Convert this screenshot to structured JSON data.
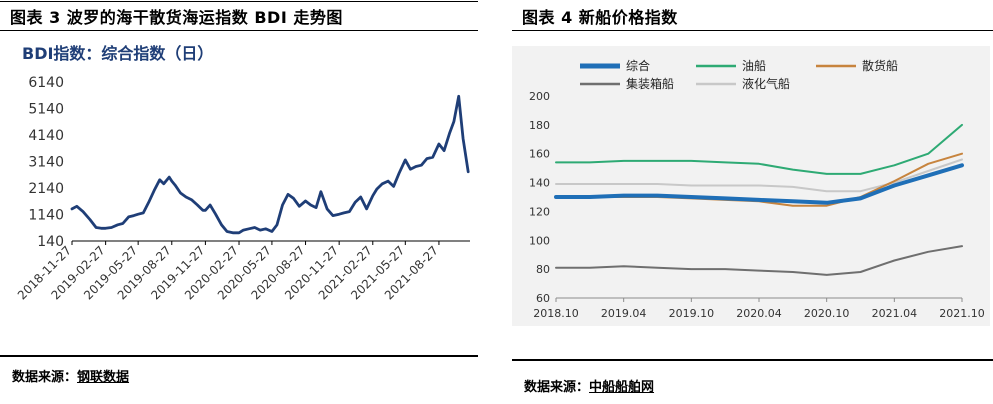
{
  "left": {
    "figure_title": "图表 3 波罗的海干散货海运指数 BDI 走势图",
    "chart_title": "BDI指数：综合指数（日）",
    "source_label": "数据来源：",
    "source_name": "钢联数据"
  },
  "right": {
    "figure_title": "图表 4 新船价格指数",
    "source_label": "数据来源：",
    "source_name": "中船船舶网"
  },
  "colors": {
    "bdi_line": "#1F3E77",
    "title_blue": "#1F3E77",
    "series_composite": "#1F6FB7",
    "series_tanker": "#2EAA74",
    "series_bulk": "#C7843E",
    "series_container": "#6F6F6F",
    "series_lpg": "#C8C8C8",
    "plot_bg_right": "#F2F2F2"
  },
  "chart_data": [
    {
      "type": "line",
      "title": "BDI指数：综合指数（日）",
      "xlabel": "",
      "ylabel": "",
      "ylim": [
        140,
        6140
      ],
      "y_ticks": [
        140,
        1140,
        2140,
        3140,
        4140,
        5140,
        6140
      ],
      "x_tick_labels": [
        "2018-11-27",
        "2019-02-27",
        "2019-05-27",
        "2019-08-27",
        "2019-11-27",
        "2020-02-27",
        "2020-05-27",
        "2020-08-27",
        "2020-11-27",
        "2021-02-27",
        "2021-05-27",
        "2021-08-27"
      ],
      "grid": false,
      "legend": "none",
      "series": [
        {
          "x": [
            "2018-11-27",
            "2018-12-10",
            "2018-12-27",
            "2019-01-15",
            "2019-02-01",
            "2019-02-15",
            "2019-02-27",
            "2019-03-15",
            "2019-04-01",
            "2019-04-15",
            "2019-05-01",
            "2019-05-15",
            "2019-05-27",
            "2019-06-10",
            "2019-06-25",
            "2019-07-10",
            "2019-07-25",
            "2019-08-05",
            "2019-08-20",
            "2019-08-27",
            "2019-09-05",
            "2019-09-20",
            "2019-10-05",
            "2019-10-20",
            "2019-11-05",
            "2019-11-20",
            "2019-11-27",
            "2019-12-10",
            "2019-12-25",
            "2020-01-10",
            "2020-01-25",
            "2020-02-10",
            "2020-02-27",
            "2020-03-10",
            "2020-03-25",
            "2020-04-10",
            "2020-04-25",
            "2020-05-10",
            "2020-05-27",
            "2020-06-10",
            "2020-06-25",
            "2020-07-10",
            "2020-07-25",
            "2020-08-10",
            "2020-08-27",
            "2020-09-10",
            "2020-09-25",
            "2020-10-08",
            "2020-10-25",
            "2020-11-10",
            "2020-11-27",
            "2020-12-10",
            "2020-12-25",
            "2021-01-10",
            "2021-01-25",
            "2021-02-10",
            "2021-02-27",
            "2021-03-10",
            "2021-03-25",
            "2021-04-10",
            "2021-04-25",
            "2021-05-10",
            "2021-05-27",
            "2021-06-10",
            "2021-06-25",
            "2021-07-10",
            "2021-07-25",
            "2021-08-10",
            "2021-08-27",
            "2021-09-10",
            "2021-09-25",
            "2021-10-07",
            "2021-10-20",
            "2021-11-01",
            "2021-11-15"
          ],
          "values": [
            1350,
            1450,
            1250,
            950,
            650,
            620,
            620,
            650,
            750,
            800,
            1050,
            1100,
            1150,
            1200,
            1600,
            2050,
            2450,
            2300,
            2550,
            2400,
            2250,
            1950,
            1800,
            1700,
            1500,
            1300,
            1300,
            1500,
            1150,
            750,
            500,
            450,
            450,
            550,
            600,
            650,
            550,
            600,
            500,
            750,
            1500,
            1900,
            1750,
            1450,
            1650,
            1500,
            1400,
            2000,
            1350,
            1100,
            1150,
            1200,
            1250,
            1600,
            1800,
            1350,
            1850,
            2100,
            2300,
            2400,
            2200,
            2700,
            3200,
            2850,
            2950,
            3000,
            3250,
            3300,
            3800,
            3550,
            4200,
            4650,
            5600,
            4000,
            2750
          ]
        }
      ]
    },
    {
      "type": "line",
      "title": "",
      "xlabel": "",
      "ylabel": "",
      "ylim": [
        60,
        200
      ],
      "y_ticks": [
        60,
        80,
        100,
        120,
        140,
        160,
        180,
        200
      ],
      "x_tick_labels": [
        "2018.10",
        "2019.04",
        "2019.10",
        "2020.04",
        "2020.10",
        "2021.04",
        "2021.10"
      ],
      "grid": false,
      "legend": "top",
      "series": [
        {
          "name": "综合",
          "x": [
            "2018.10",
            "2019.01",
            "2019.04",
            "2019.07",
            "2019.10",
            "2020.01",
            "2020.04",
            "2020.07",
            "2020.10",
            "2021.01",
            "2021.04",
            "2021.07",
            "2021.10"
          ],
          "values": [
            130,
            130,
            131,
            131,
            130,
            129,
            128,
            127,
            126,
            129,
            138,
            145,
            152
          ]
        },
        {
          "name": "油船",
          "x": [
            "2018.10",
            "2019.01",
            "2019.04",
            "2019.07",
            "2019.10",
            "2020.01",
            "2020.04",
            "2020.07",
            "2020.10",
            "2021.01",
            "2021.04",
            "2021.07",
            "2021.10"
          ],
          "values": [
            154,
            154,
            155,
            155,
            155,
            154,
            153,
            149,
            146,
            146,
            152,
            160,
            180
          ]
        },
        {
          "name": "散货船",
          "x": [
            "2018.10",
            "2019.01",
            "2019.04",
            "2019.07",
            "2019.10",
            "2020.01",
            "2020.04",
            "2020.07",
            "2020.10",
            "2021.01",
            "2021.04",
            "2021.07",
            "2021.10"
          ],
          "values": [
            130,
            130,
            130,
            130,
            129,
            128,
            127,
            124,
            124,
            130,
            141,
            153,
            160
          ]
        },
        {
          "name": "集装箱船",
          "x": [
            "2018.10",
            "2019.01",
            "2019.04",
            "2019.07",
            "2019.10",
            "2020.01",
            "2020.04",
            "2020.07",
            "2020.10",
            "2021.01",
            "2021.04",
            "2021.07",
            "2021.10"
          ],
          "values": [
            81,
            81,
            82,
            81,
            80,
            80,
            79,
            78,
            76,
            78,
            86,
            92,
            96
          ]
        },
        {
          "name": "液化气船",
          "x": [
            "2018.10",
            "2019.01",
            "2019.04",
            "2019.07",
            "2019.10",
            "2020.01",
            "2020.04",
            "2020.07",
            "2020.10",
            "2021.01",
            "2021.04",
            "2021.07",
            "2021.10"
          ],
          "values": [
            139,
            139,
            139,
            139,
            138,
            138,
            138,
            137,
            134,
            134,
            140,
            148,
            156
          ]
        }
      ]
    }
  ]
}
